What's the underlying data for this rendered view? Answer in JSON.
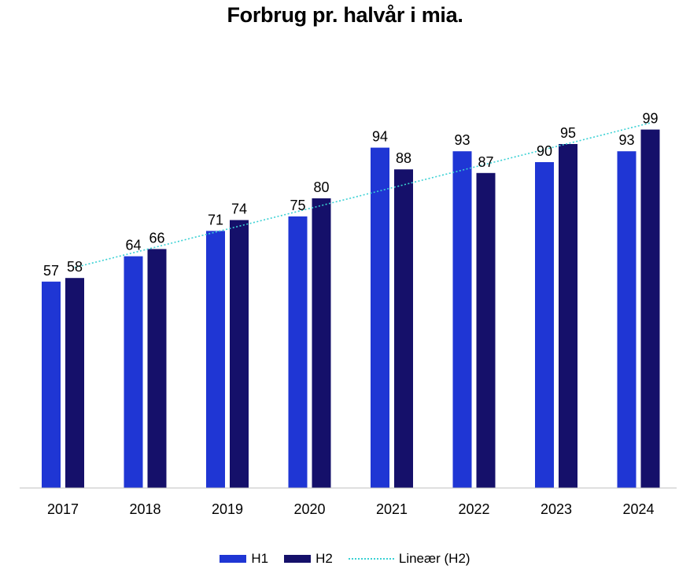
{
  "chart_data": {
    "type": "bar",
    "title": "Forbrug pr. halvår i mia.",
    "xlabel": "",
    "ylabel": "",
    "categories": [
      "2017",
      "2018",
      "2019",
      "2020",
      "2021",
      "2022",
      "2023",
      "2024"
    ],
    "series": [
      {
        "name": "H1",
        "values": [
          57,
          64,
          71,
          75,
          94,
          93,
          90,
          93
        ],
        "color": "#1f36d4"
      },
      {
        "name": "H2",
        "values": [
          58,
          66,
          74,
          80,
          88,
          87,
          95,
          99
        ],
        "color": "#15106a"
      }
    ],
    "trendline": {
      "name": "Lineær (H2)",
      "of_series": "H2",
      "type": "linear",
      "color": "#3ad1d4"
    },
    "ylim": [
      0,
      100
    ],
    "grid": false,
    "legend_position": "bottom",
    "data_labels": true
  }
}
